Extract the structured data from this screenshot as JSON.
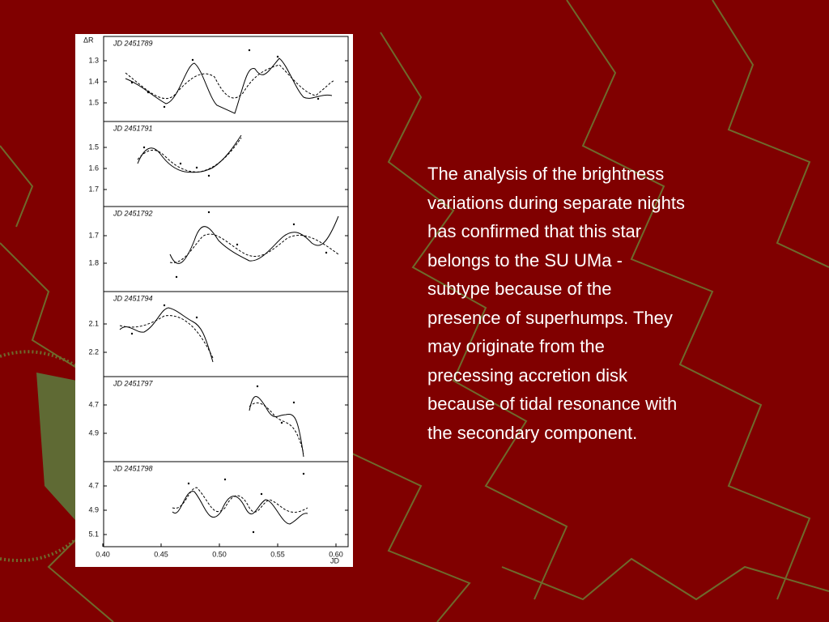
{
  "figure": {
    "y_label": "ΔR",
    "x_label": "JD",
    "x_ticks": [
      "0.40",
      "0.45",
      "0.50",
      "0.55",
      "0.60"
    ],
    "panels": [
      {
        "label": "JD  2451789",
        "ticks": [
          "1.3",
          "1.4",
          "1.5"
        ]
      },
      {
        "label": "JD  2451791",
        "ticks": [
          "1.5",
          "1.6",
          "1.7"
        ]
      },
      {
        "label": "JD  2451792",
        "ticks": [
          "1.7",
          "1.8"
        ]
      },
      {
        "label": "JD  2451794",
        "ticks": [
          "2.1",
          "2.2"
        ]
      },
      {
        "label": "JD  2451797",
        "ticks": [
          "4.7",
          "4.9"
        ]
      },
      {
        "label": "JD  2451798",
        "ticks": [
          "4.7",
          "4.9",
          "5.1"
        ]
      }
    ]
  },
  "text": {
    "lines": [
      "The analysis of the brightness",
      "variations during separate nights",
      "has confirmed that this star",
      "belongs to the SU UMa -",
      "subtype because of the",
      "presence of superhumps. They",
      "may originate from the",
      "precessing accretion disk",
      "because of tidal resonance with",
      "the secondary component."
    ]
  }
}
